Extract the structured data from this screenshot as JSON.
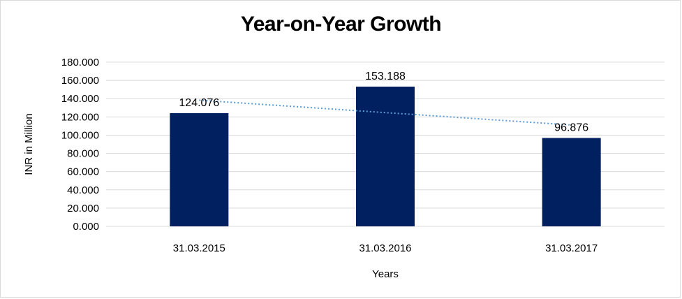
{
  "chart_data": {
    "type": "bar",
    "title": "Year-on-Year Growth",
    "xlabel": "Years",
    "ylabel": "INR in Million",
    "categories": [
      "31.03.2015",
      "31.03.2016",
      "31.03.2017"
    ],
    "values": [
      124.076,
      153.188,
      96.876
    ],
    "data_labels": [
      "124.076",
      "153.188",
      "96.876"
    ],
    "ylim": [
      0,
      180
    ],
    "yticks": [
      0,
      20,
      40,
      60,
      80,
      100,
      120,
      140,
      160,
      180
    ],
    "ytick_labels": [
      "0.000",
      "20.000",
      "40.000",
      "60.000",
      "80.000",
      "100.000",
      "120.000",
      "140.000",
      "160.000",
      "180.000"
    ],
    "grid": true,
    "legend": "none",
    "trendline": "linear",
    "colors": {
      "bar": "#002060",
      "trendline": "#5b9bd5",
      "grid": "#d9d9d9"
    }
  }
}
